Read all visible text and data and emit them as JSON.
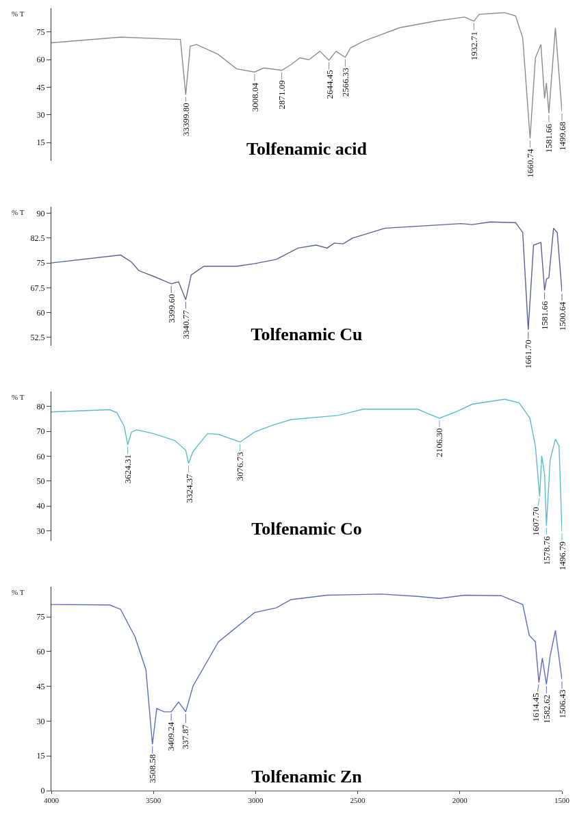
{
  "chart_data": [
    {
      "type": "line",
      "title": "Tolfenamic acid",
      "ylabel": "% T",
      "color": "#8c8c8c",
      "xlim": [
        4000,
        1500
      ],
      "ylim": [
        5,
        88
      ],
      "yticks": [
        15,
        30,
        45,
        60,
        75
      ],
      "tick_labels": "y",
      "x": [
        4000,
        3661,
        3368,
        3342,
        3320,
        3289,
        3182,
        3093,
        3005,
        2960,
        2872,
        2827,
        2783,
        2739,
        2685,
        2641,
        2606,
        2561,
        2535,
        2473,
        2295,
        2118,
        1976,
        1931,
        1905,
        1781,
        1727,
        1692,
        1656,
        1630,
        1603,
        1585,
        1576,
        1564,
        1532,
        1500
      ],
      "values": [
        69.2,
        72.3,
        71,
        40.9,
        67.3,
        68.3,
        62.8,
        55,
        53.3,
        55.5,
        54.2,
        57.3,
        61,
        60,
        64.6,
        59.7,
        64.6,
        61.3,
        66.4,
        70,
        77.4,
        81,
        83.2,
        81,
        84.7,
        85.6,
        83.8,
        71.9,
        17.2,
        61,
        68.3,
        39,
        47.3,
        30.9,
        77.4,
        31.8
      ],
      "annotations": [
        {
          "text": "33399.80",
          "x": 3342,
          "y": 40.9
        },
        {
          "text": "3008.04",
          "x": 3005,
          "y": 53.3
        },
        {
          "text": "2871.09",
          "x": 2872,
          "y": 54.2
        },
        {
          "text": "2644.45",
          "x": 2641,
          "y": 59.7
        },
        {
          "text": "2566.33",
          "x": 2561,
          "y": 61.3
        },
        {
          "text": "1932.71",
          "x": 1931,
          "y": 81
        },
        {
          "text": "1660.74",
          "x": 1656,
          "y": 17.2
        },
        {
          "text": "1581.66",
          "x": 1564,
          "y": 30.9
        },
        {
          "text": "1499.68",
          "x": 1500,
          "y": 31.8
        }
      ]
    },
    {
      "type": "line",
      "title": "Tolfenamic Cu",
      "ylabel": "% T",
      "color": "#5a5f9a",
      "xlim": [
        4000,
        1500
      ],
      "ylim": [
        50,
        92
      ],
      "yticks": [
        52.5,
        60,
        67.5,
        75,
        82.5,
        90
      ],
      "tick_labels": "y",
      "x": [
        4000,
        3661,
        3608,
        3572,
        3501,
        3413,
        3377,
        3342,
        3315,
        3253,
        3093,
        3005,
        2898,
        2792,
        2703,
        2650,
        2615,
        2570,
        2526,
        2366,
        1993,
        1940,
        1851,
        1727,
        1692,
        1665,
        1639,
        1603,
        1585,
        1576,
        1564,
        1541,
        1523,
        1500
      ],
      "values": [
        75,
        77.4,
        75.3,
        72.7,
        71,
        68.7,
        69.3,
        63.9,
        71.4,
        74,
        74,
        74.8,
        76.1,
        79.5,
        80.4,
        79.5,
        81,
        80.8,
        82.5,
        85.5,
        86.9,
        86.6,
        87.4,
        87.2,
        84.2,
        54.8,
        80.4,
        81.2,
        66.7,
        70.1,
        70.6,
        85.5,
        84.2,
        66.3
      ],
      "annotations": [
        {
          "text": "3399.60",
          "x": 3413,
          "y": 68.7
        },
        {
          "text": "3340.77",
          "x": 3342,
          "y": 63.9
        },
        {
          "text": "1661.70",
          "x": 1665,
          "y": 54.8
        },
        {
          "text": "1581.66",
          "x": 1585,
          "y": 66.7
        },
        {
          "text": "1500.64",
          "x": 1500,
          "y": 66.3
        }
      ]
    },
    {
      "type": "line",
      "title": "Tolfenamic Co",
      "ylabel": "% T",
      "color": "#5bbcd0",
      "xlim": [
        4000,
        1500
      ],
      "ylim": [
        26,
        86
      ],
      "yticks": [
        30,
        40,
        50,
        60,
        70,
        80
      ],
      "tick_labels": "y",
      "x": [
        4000,
        3714,
        3679,
        3643,
        3626,
        3608,
        3581,
        3501,
        3395,
        3342,
        3328,
        3307,
        3235,
        3182,
        3076,
        3005,
        2916,
        2827,
        2597,
        2473,
        2206,
        2153,
        2100,
        2011,
        1940,
        1781,
        1710,
        1657,
        1630,
        1609,
        1599,
        1585,
        1576,
        1558,
        1532,
        1514,
        1500
      ],
      "values": [
        77.8,
        78.7,
        77.5,
        71.9,
        64.6,
        69.7,
        70.6,
        69.1,
        66.3,
        62.4,
        57.1,
        61.8,
        69.1,
        68.8,
        65.7,
        69.7,
        72.5,
        74.7,
        76.4,
        78.9,
        78.9,
        77,
        75.3,
        78.1,
        80.9,
        82.9,
        81.5,
        75.3,
        64,
        43.8,
        60.1,
        52.8,
        32,
        58.4,
        66.9,
        64,
        29.8
      ],
      "annotations": [
        {
          "text": "3624.31",
          "x": 3626,
          "y": 64.6
        },
        {
          "text": "3324.37",
          "x": 3328,
          "y": 57.1
        },
        {
          "text": "3076.73",
          "x": 3076,
          "y": 65.7
        },
        {
          "text": "2106.30",
          "x": 2100,
          "y": 75.3
        },
        {
          "text": "1607.70",
          "x": 1609,
          "y": 43.8
        },
        {
          "text": "1578.76",
          "x": 1576,
          "y": 32
        },
        {
          "text": "1496.79",
          "x": 1500,
          "y": 29.8
        }
      ]
    },
    {
      "type": "line",
      "title": "Tolfenamic Zn",
      "ylabel": "% T",
      "color": "#5b6bbf",
      "xlim": [
        4000,
        1500
      ],
      "ylim": [
        0,
        88
      ],
      "yticks": [
        0,
        15,
        30,
        45,
        60,
        75
      ],
      "xticks": [
        4000,
        3500,
        3000,
        2500,
        2000,
        1500
      ],
      "x": [
        4000,
        3714,
        3661,
        3590,
        3537,
        3505,
        3484,
        3448,
        3413,
        3377,
        3342,
        3306,
        3182,
        3005,
        2898,
        2827,
        2650,
        2384,
        2206,
        2100,
        1976,
        1798,
        1692,
        1660,
        1630,
        1613,
        1596,
        1576,
        1558,
        1532,
        1500
      ],
      "values": [
        80.3,
        80.1,
        78.2,
        66.3,
        52.2,
        20,
        35.4,
        34,
        34,
        38.2,
        34,
        45.2,
        64.2,
        76.8,
        78.9,
        82.4,
        84.3,
        84.8,
        83.8,
        82.9,
        84.3,
        84.1,
        80.3,
        67,
        64.2,
        46.6,
        57.2,
        45.9,
        57.9,
        69.1,
        48
      ],
      "annotations": [
        {
          "text": "3508.58",
          "x": 3505,
          "y": 20
        },
        {
          "text": "3409.24",
          "x": 3413,
          "y": 34
        },
        {
          "text": "337.87",
          "x": 3342,
          "y": 34
        },
        {
          "text": "1614.45",
          "x": 1613,
          "y": 46.6
        },
        {
          "text": "1582.62",
          "x": 1576,
          "y": 45.9
        },
        {
          "text": "1506.43",
          "x": 1500,
          "y": 48
        }
      ]
    }
  ]
}
